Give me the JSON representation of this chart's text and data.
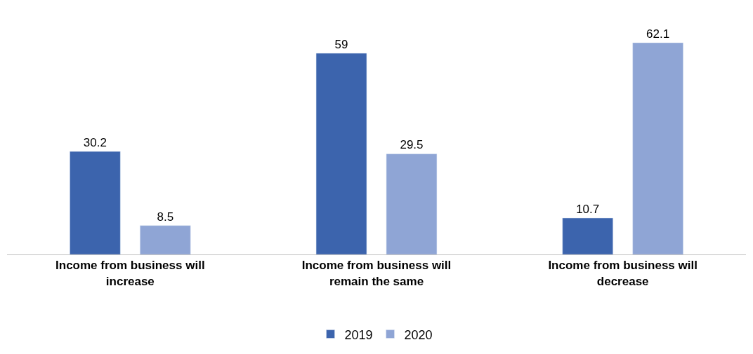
{
  "chart_data": {
    "type": "bar",
    "categories": [
      "Income from business will increase",
      "Income from business will remain the same",
      "Income from business will decrease"
    ],
    "series": [
      {
        "name": "2019",
        "color": "#3c64ad",
        "values": [
          30.2,
          59,
          10.7
        ]
      },
      {
        "name": "2020",
        "color": "#8fa5d5",
        "values": [
          8.5,
          29.5,
          62.1
        ]
      }
    ],
    "data_labels": true,
    "legend": "bottom"
  }
}
